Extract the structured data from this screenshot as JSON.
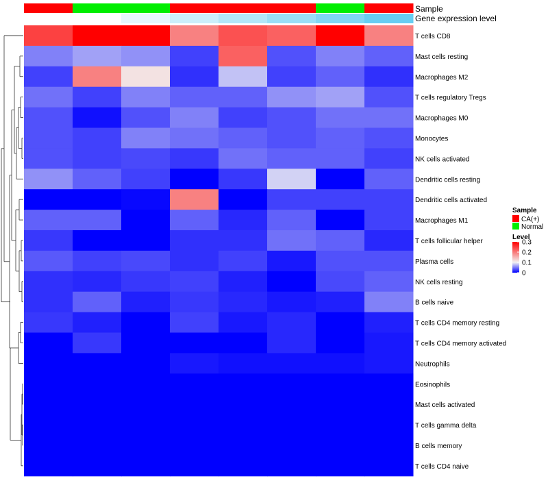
{
  "chart_data": {
    "type": "heatmap",
    "annotation_titles": {
      "sample": "Sample",
      "gene_expression": "Gene expression level"
    },
    "columns": 8,
    "sample_row": [
      "CA(+)",
      "Normal",
      "Normal",
      "CA(+)",
      "CA(+)",
      "CA(+)",
      "Normal",
      "CA(+)"
    ],
    "gene_expression_row": [
      0.0,
      0.0,
      0.15,
      0.3,
      0.45,
      0.6,
      0.75,
      0.9
    ],
    "rows": [
      {
        "label": "T cells CD8",
        "values": [
          0.26,
          0.3,
          0.3,
          0.22,
          0.25,
          0.24,
          0.3,
          0.22
        ]
      },
      {
        "label": "Mast cells resting",
        "values": [
          0.08,
          0.1,
          0.09,
          0.04,
          0.24,
          0.05,
          0.08,
          0.06
        ]
      },
      {
        "label": "Macrophages M2",
        "values": [
          0.04,
          0.22,
          0.16,
          0.03,
          0.12,
          0.04,
          0.06,
          0.03
        ]
      },
      {
        "label": "T cells regulatory  Tregs",
        "values": [
          0.07,
          0.04,
          0.08,
          0.06,
          0.06,
          0.09,
          0.1,
          0.05
        ]
      },
      {
        "label": "Macrophages M0",
        "values": [
          0.05,
          0.01,
          0.05,
          0.08,
          0.04,
          0.05,
          0.07,
          0.07
        ]
      },
      {
        "label": "Monocytes",
        "values": [
          0.05,
          0.04,
          0.08,
          0.07,
          0.06,
          0.05,
          0.06,
          0.05
        ]
      },
      {
        "label": "NK cells activated",
        "values": [
          0.05,
          0.04,
          0.045,
          0.035,
          0.07,
          0.06,
          0.06,
          0.04
        ]
      },
      {
        "label": "Dendritic cells resting",
        "values": [
          0.09,
          0.06,
          0.04,
          0.0,
          0.035,
          0.13,
          0.0,
          0.06
        ]
      },
      {
        "label": "Dendritic cells activated",
        "values": [
          0.0,
          0.0,
          0.005,
          0.22,
          0.0,
          0.04,
          0.04,
          0.04
        ]
      },
      {
        "label": "Macrophages M1",
        "values": [
          0.06,
          0.06,
          0.0,
          0.06,
          0.025,
          0.06,
          0.0,
          0.04
        ]
      },
      {
        "label": "T cells follicular helper",
        "values": [
          0.035,
          0.0,
          0.0,
          0.03,
          0.03,
          0.07,
          0.06,
          0.025
        ]
      },
      {
        "label": "Plasma cells",
        "values": [
          0.055,
          0.04,
          0.045,
          0.03,
          0.04,
          0.015,
          0.05,
          0.05
        ]
      },
      {
        "label": "NK cells resting",
        "values": [
          0.03,
          0.025,
          0.035,
          0.04,
          0.02,
          0.0,
          0.045,
          0.06
        ]
      },
      {
        "label": "B cells naive",
        "values": [
          0.03,
          0.06,
          0.02,
          0.035,
          0.025,
          0.015,
          0.02,
          0.08
        ]
      },
      {
        "label": "T cells CD4 memory resting",
        "values": [
          0.035,
          0.02,
          0.0,
          0.04,
          0.015,
          0.025,
          0.0,
          0.02
        ]
      },
      {
        "label": "T cells CD4 memory activated",
        "values": [
          0.0,
          0.035,
          0.0,
          0.0,
          0.0,
          0.025,
          0.0,
          0.015
        ]
      },
      {
        "label": "Neutrophils",
        "values": [
          0.0,
          0.0,
          0.0,
          0.015,
          0.01,
          0.01,
          0.01,
          0.015
        ]
      },
      {
        "label": "Eosinophils",
        "values": [
          0,
          0,
          0,
          0,
          0,
          0,
          0,
          0
        ]
      },
      {
        "label": "Mast cells activated",
        "values": [
          0,
          0,
          0,
          0,
          0,
          0,
          0,
          0
        ]
      },
      {
        "label": "T cells gamma delta",
        "values": [
          0,
          0,
          0,
          0,
          0,
          0,
          0,
          0
        ]
      },
      {
        "label": "B cells memory",
        "values": [
          0,
          0,
          0,
          0,
          0,
          0,
          0,
          0
        ]
      },
      {
        "label": "T cells CD4 naive",
        "values": [
          0,
          0,
          0,
          0,
          0,
          0,
          0,
          0
        ]
      }
    ],
    "legend": {
      "sample_title": "Sample",
      "sample_items": [
        {
          "label": "CA(+)",
          "color": "#ff0000"
        },
        {
          "label": "Normal",
          "color": "#00ee00"
        }
      ],
      "level_title": "Level",
      "level_ticks": [
        0.3,
        0.2,
        0.1,
        0
      ],
      "level_tick_labels": [
        "0.3",
        "0.2",
        "0.1",
        "0"
      ],
      "level_range": [
        0,
        0.3
      ],
      "colors": {
        "low": "#0000ff",
        "mid": "#f2f2f2",
        "high": "#ff0000"
      }
    },
    "gene_expression_colors": {
      "low": "#ffffff",
      "high": "#56c8f0"
    }
  }
}
